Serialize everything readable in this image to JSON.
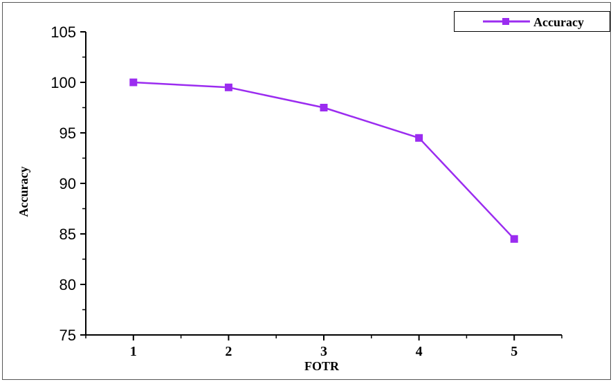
{
  "chart_data": {
    "type": "line",
    "title": "",
    "xlabel": "FOTR",
    "ylabel": "Accuracy",
    "x": [
      1,
      2,
      3,
      4,
      5
    ],
    "x_tick_labels": [
      "1",
      "2",
      "3",
      "4",
      "5"
    ],
    "y_tick_labels": [
      "75",
      "80",
      "85",
      "90",
      "95",
      "100",
      "105"
    ],
    "y_ticks": [
      75,
      80,
      85,
      90,
      95,
      100,
      105
    ],
    "xlim": [
      0.5,
      5.5
    ],
    "ylim": [
      75,
      105
    ],
    "grid": false,
    "legend_position": "top-right",
    "series": [
      {
        "name": "Accuracy",
        "values": [
          100,
          99.5,
          97.5,
          94.5,
          84.5
        ],
        "color": "#9b2cf0",
        "marker": "square"
      }
    ]
  }
}
